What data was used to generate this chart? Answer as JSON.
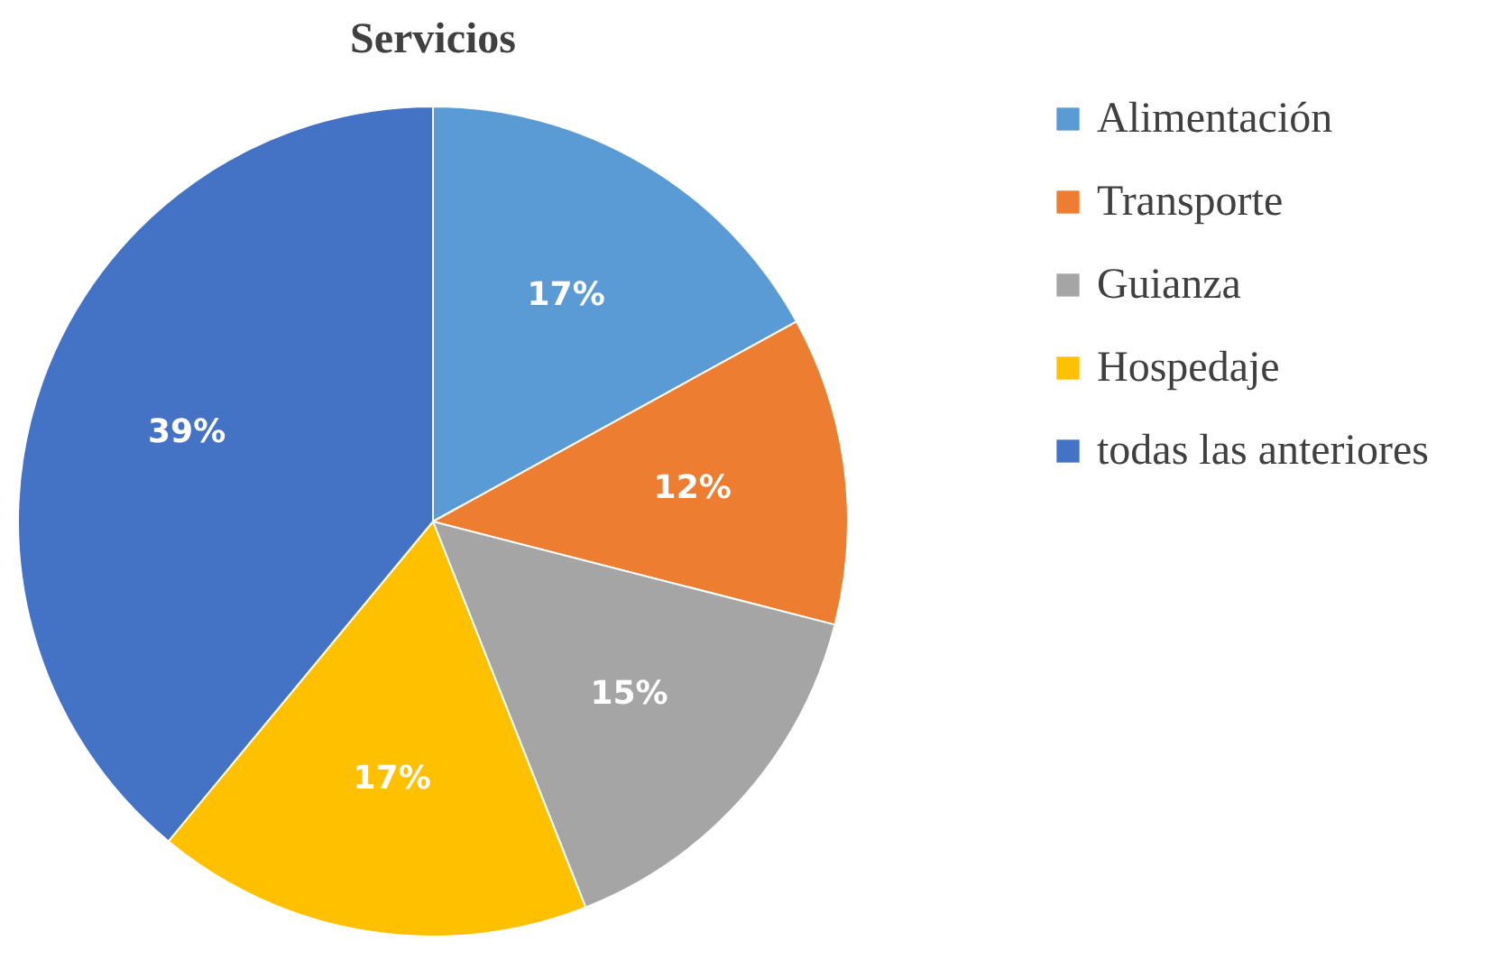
{
  "chart_data": {
    "type": "pie",
    "title": "Servicios",
    "categories": [
      "Alimentación",
      "Transporte",
      "Guianza",
      "Hospedaje",
      "todas las anteriores"
    ],
    "values": [
      17,
      12,
      15,
      17,
      39
    ],
    "colors": [
      "#5b9bd5",
      "#ed7d31",
      "#a5a5a5",
      "#ffc000",
      "#4472c4"
    ],
    "value_labels": [
      "17%",
      "12%",
      "15%",
      "17%",
      "39%"
    ],
    "legend": "right"
  }
}
